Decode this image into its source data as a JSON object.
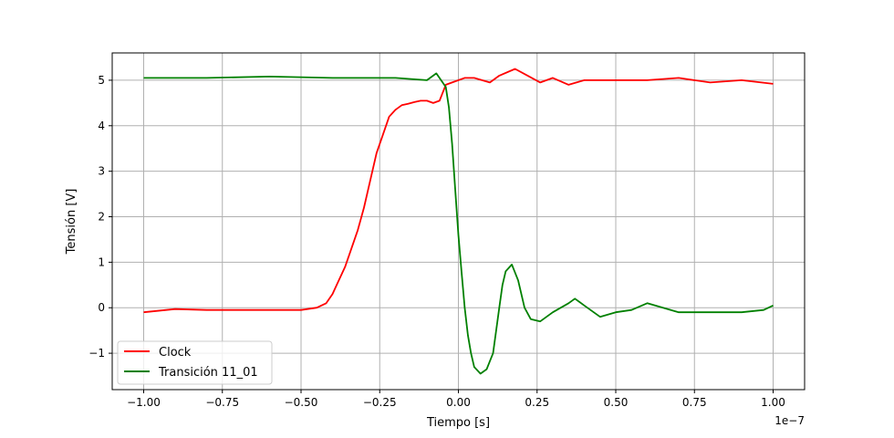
{
  "chart_data": {
    "type": "line",
    "xlabel": "Tiempo [s]",
    "ylabel": "Tensión [V]",
    "x_offset_label": "1e−7",
    "x_unit_scale": 1e-07,
    "xlim": [
      -1.1,
      1.1
    ],
    "ylim": [
      -1.8,
      5.6
    ],
    "xticks": [
      -1.0,
      -0.75,
      -0.5,
      -0.25,
      0.0,
      0.25,
      0.5,
      0.75,
      1.0
    ],
    "xtick_labels": [
      "−1.00",
      "−0.75",
      "−0.50",
      "−0.25",
      "0.00",
      "0.25",
      "0.50",
      "0.75",
      "1.00"
    ],
    "yticks": [
      -1,
      0,
      1,
      2,
      3,
      4,
      5
    ],
    "ytick_labels": [
      "−1",
      "0",
      "1",
      "2",
      "3",
      "4",
      "5"
    ],
    "grid": true,
    "legend_position": "lower-left",
    "series": [
      {
        "name": "Clock",
        "color": "#ff0000",
        "x": [
          -1.0,
          -0.9,
          -0.8,
          -0.7,
          -0.6,
          -0.5,
          -0.45,
          -0.42,
          -0.4,
          -0.38,
          -0.36,
          -0.34,
          -0.32,
          -0.3,
          -0.28,
          -0.26,
          -0.24,
          -0.22,
          -0.2,
          -0.18,
          -0.16,
          -0.14,
          -0.12,
          -0.1,
          -0.08,
          -0.06,
          -0.04,
          -0.02,
          0.0,
          0.02,
          0.05,
          0.1,
          0.13,
          0.18,
          0.22,
          0.26,
          0.3,
          0.35,
          0.4,
          0.5,
          0.6,
          0.7,
          0.8,
          0.9,
          1.0
        ],
        "y": [
          -0.1,
          -0.03,
          -0.05,
          -0.05,
          -0.05,
          -0.05,
          0.0,
          0.1,
          0.3,
          0.6,
          0.9,
          1.3,
          1.7,
          2.2,
          2.8,
          3.4,
          3.8,
          4.2,
          4.35,
          4.45,
          4.48,
          4.52,
          4.55,
          4.55,
          4.5,
          4.55,
          4.9,
          4.95,
          5.0,
          5.05,
          5.05,
          4.95,
          5.1,
          5.25,
          5.1,
          4.95,
          5.05,
          4.9,
          5.0,
          5.0,
          5.0,
          5.05,
          4.95,
          5.0,
          4.92
        ]
      },
      {
        "name": "Transición 11_01",
        "color": "#008000",
        "x": [
          -1.0,
          -0.9,
          -0.8,
          -0.6,
          -0.4,
          -0.2,
          -0.1,
          -0.07,
          -0.04,
          -0.03,
          -0.02,
          -0.01,
          0.0,
          0.01,
          0.02,
          0.03,
          0.04,
          0.05,
          0.07,
          0.09,
          0.11,
          0.13,
          0.14,
          0.15,
          0.17,
          0.19,
          0.21,
          0.23,
          0.26,
          0.3,
          0.35,
          0.37,
          0.4,
          0.45,
          0.5,
          0.55,
          0.6,
          0.7,
          0.8,
          0.9,
          0.97,
          1.0
        ],
        "y": [
          5.05,
          5.05,
          5.05,
          5.08,
          5.05,
          5.05,
          5.0,
          5.15,
          4.85,
          4.4,
          3.6,
          2.6,
          1.6,
          0.8,
          0.0,
          -0.6,
          -1.0,
          -1.3,
          -1.45,
          -1.35,
          -1.0,
          0.0,
          0.5,
          0.8,
          0.95,
          0.6,
          0.0,
          -0.25,
          -0.3,
          -0.1,
          0.1,
          0.2,
          0.05,
          -0.2,
          -0.1,
          -0.05,
          0.1,
          -0.1,
          -0.1,
          -0.1,
          -0.05,
          0.05
        ]
      }
    ]
  }
}
